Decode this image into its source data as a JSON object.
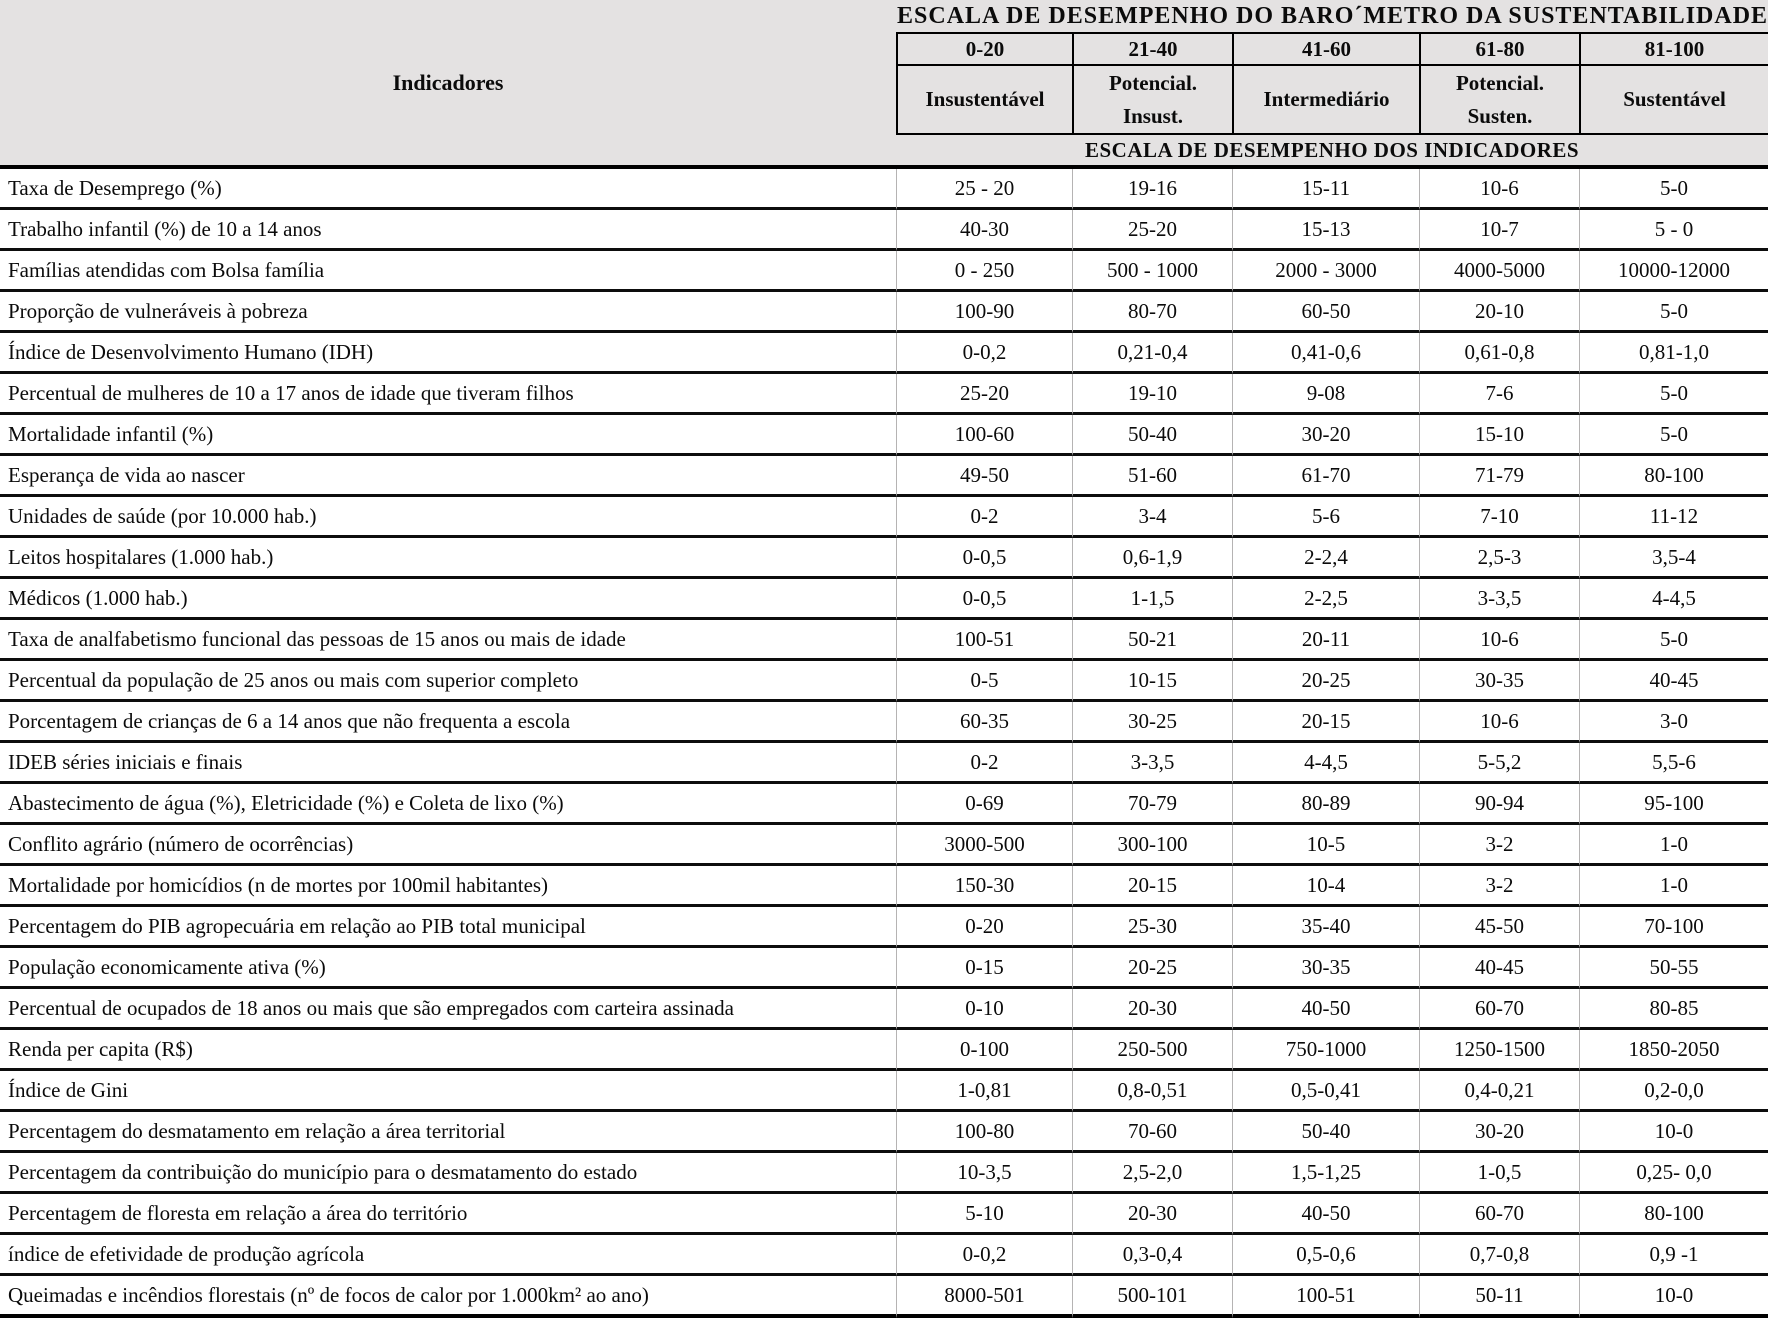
{
  "colors": {
    "header_bg": "#e4e2e2",
    "grid_line": "#000000",
    "column_divider": "#b5b3b3",
    "text": "#0b0b0b"
  },
  "header": {
    "indicators_label": "Indicadores",
    "main_title": "ESCALA DE DESEMPENHO DO BARO´METRO DA SUSTENTABILIDADE",
    "ranges": [
      "0-20",
      "21-40",
      "41-60",
      "61-80",
      "81-100"
    ],
    "classifications": [
      "Insustentável",
      "Potencial.\nInsust.",
      "Intermediário",
      "Potencial.\nSusten.",
      "Sustentável"
    ],
    "band_title": "ESCALA DE DESEMPENHO DOS INDICADORES"
  },
  "table": {
    "rows": [
      {
        "indicator": "Taxa de Desemprego (%)",
        "values": [
          "25 - 20",
          "19-16",
          "15-11",
          "10-6",
          "5-0"
        ]
      },
      {
        "indicator": "Trabalho infantil (%) de 10 a 14 anos",
        "values": [
          "40-30",
          "25-20",
          "15-13",
          "10-7",
          "5 - 0"
        ]
      },
      {
        "indicator": "Famílias atendidas com Bolsa família",
        "values": [
          "0 - 250",
          "500 - 1000",
          "2000 - 3000",
          "4000-5000",
          "10000-12000"
        ]
      },
      {
        "indicator": "Proporção de vulneráveis à pobreza",
        "values": [
          "100-90",
          "80-70",
          "60-50",
          "20-10",
          "5-0"
        ]
      },
      {
        "indicator": "Índice de Desenvolvimento Humano (IDH)",
        "values": [
          "0-0,2",
          "0,21-0,4",
          "0,41-0,6",
          "0,61-0,8",
          "0,81-1,0"
        ]
      },
      {
        "indicator": "Percentual de mulheres de 10 a 17 anos de idade que tiveram filhos",
        "values": [
          "25-20",
          "19-10",
          "9-08",
          "7-6",
          "5-0"
        ]
      },
      {
        "indicator": "Mortalidade infantil (%)",
        "values": [
          "100-60",
          "50-40",
          "30-20",
          "15-10",
          "5-0"
        ]
      },
      {
        "indicator": "Esperança de vida ao nascer",
        "values": [
          "49-50",
          "51-60",
          "61-70",
          "71-79",
          "80-100"
        ]
      },
      {
        "indicator": "Unidades de saúde (por 10.000 hab.)",
        "values": [
          "0-2",
          "3-4",
          "5-6",
          "7-10",
          "11-12"
        ]
      },
      {
        "indicator": "Leitos hospitalares (1.000 hab.)",
        "values": [
          "0-0,5",
          "0,6-1,9",
          "2-2,4",
          "2,5-3",
          "3,5-4"
        ]
      },
      {
        "indicator": "Médicos (1.000 hab.)",
        "values": [
          "0-0,5",
          "1-1,5",
          "2-2,5",
          "3-3,5",
          "4-4,5"
        ]
      },
      {
        "indicator": "Taxa de analfabetismo funcional das pessoas de 15 anos ou mais de idade",
        "values": [
          "100-51",
          "50-21",
          "20-11",
          "10-6",
          "5-0"
        ]
      },
      {
        "indicator": "Percentual da população de 25 anos ou mais com superior completo",
        "values": [
          "0-5",
          "10-15",
          "20-25",
          "30-35",
          "40-45"
        ]
      },
      {
        "indicator": "Porcentagem de crianças de 6 a 14 anos que não frequenta a escola",
        "values": [
          "60-35",
          "30-25",
          "20-15",
          "10-6",
          "3-0"
        ]
      },
      {
        "indicator": "IDEB séries iniciais e finais",
        "values": [
          "0-2",
          "3-3,5",
          "4-4,5",
          "5-5,2",
          "5,5-6"
        ]
      },
      {
        "indicator": "Abastecimento de água (%), Eletricidade (%) e Coleta de lixo (%)",
        "values": [
          "0-69",
          "70-79",
          "80-89",
          "90-94",
          "95-100"
        ]
      },
      {
        "indicator": "Conflito agrário (número de ocorrências)",
        "values": [
          "3000-500",
          "300-100",
          "10-5",
          "3-2",
          "1-0"
        ]
      },
      {
        "indicator": "Mortalidade por homicídios (n de mortes por 100mil habitantes)",
        "values": [
          "150-30",
          "20-15",
          "10-4",
          "3-2",
          "1-0"
        ]
      },
      {
        "indicator": "Percentagem do PIB agropecuária em relação ao PIB total municipal",
        "values": [
          "0-20",
          "25-30",
          "35-40",
          "45-50",
          "70-100"
        ]
      },
      {
        "indicator": "População economicamente ativa (%)",
        "values": [
          "0-15",
          "20-25",
          "30-35",
          "40-45",
          "50-55"
        ]
      },
      {
        "indicator": "Percentual de ocupados de 18 anos ou mais que são empregados com carteira assinada",
        "values": [
          "0-10",
          "20-30",
          "40-50",
          "60-70",
          "80-85"
        ]
      },
      {
        "indicator": "Renda per capita (R$)",
        "values": [
          "0-100",
          "250-500",
          "750-1000",
          "1250-1500",
          "1850-2050"
        ]
      },
      {
        "indicator": "Índice de Gini",
        "values": [
          "1-0,81",
          "0,8-0,51",
          "0,5-0,41",
          "0,4-0,21",
          "0,2-0,0"
        ]
      },
      {
        "indicator": "Percentagem do desmatamento em relação a área territorial",
        "values": [
          "100-80",
          "70-60",
          "50-40",
          "30-20",
          "10-0"
        ]
      },
      {
        "indicator": "Percentagem da contribuição do município para o desmatamento do estado",
        "values": [
          "10-3,5",
          "2,5-2,0",
          "1,5-1,25",
          "1-0,5",
          "0,25- 0,0"
        ]
      },
      {
        "indicator": "Percentagem de floresta em relação a área do território",
        "values": [
          "5-10",
          "20-30",
          "40-50",
          "60-70",
          "80-100"
        ]
      },
      {
        "indicator": "índice de efetividade de produção agrícola",
        "values": [
          "0-0,2",
          "0,3-0,4",
          "0,5-0,6",
          "0,7-0,8",
          "0,9 -1"
        ]
      },
      {
        "indicator": "Queimadas e incêndios florestais (nº de focos de calor por 1.000km² ao ano)",
        "values": [
          "8000-501",
          "500-101",
          "100-51",
          "50-11",
          "10-0"
        ]
      }
    ]
  }
}
